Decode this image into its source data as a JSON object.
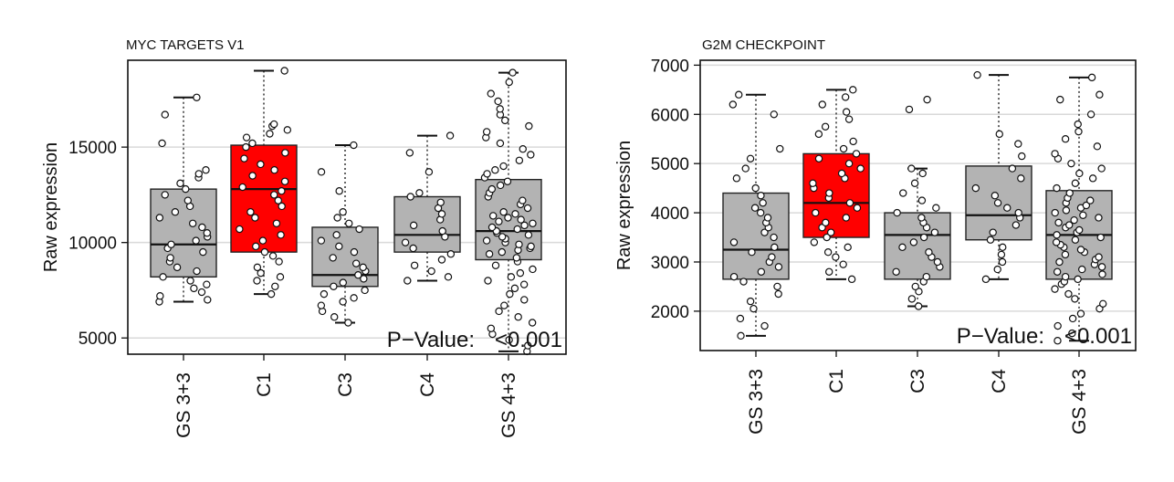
{
  "chart_data": [
    {
      "type": "boxplot",
      "title": "MYC TARGETS V1",
      "ylabel": "Raw expression",
      "xlabel": "",
      "categories": [
        "GS 3+3",
        "C1",
        "C3",
        "C4",
        "GS 4+3"
      ],
      "ylim": [
        4150,
        19550
      ],
      "yticks": [
        5000,
        10000,
        15000
      ],
      "grid": true,
      "highlight_category": "C1",
      "colors": {
        "default_box": "#b3b3b3",
        "highlight_box": "#ff0000",
        "point_fill": "#ffffff",
        "gridline": "#d9d9d9"
      },
      "annotation": {
        "label": "P−Value:",
        "value": "<0.001"
      },
      "boxes": [
        {
          "category": "GS 3+3",
          "whisker_low": 6900,
          "q1": 8200,
          "median": 9900,
          "q3": 12800,
          "whisker_high": 17600
        },
        {
          "category": "C1",
          "whisker_low": 7300,
          "q1": 9500,
          "median": 12800,
          "q3": 15100,
          "whisker_high": 19000
        },
        {
          "category": "C3",
          "whisker_low": 5800,
          "q1": 7700,
          "median": 8300,
          "q3": 10800,
          "whisker_high": 15100
        },
        {
          "category": "C4",
          "whisker_low": 8000,
          "q1": 9500,
          "median": 10400,
          "q3": 12400,
          "whisker_high": 15600
        },
        {
          "category": "GS 4+3",
          "whisker_low": 4300,
          "q1": 9100,
          "median": 10600,
          "q3": 13300,
          "whisker_high": 18900
        }
      ],
      "points": [
        {
          "category": "GS 3+3",
          "values": [
            6900,
            7000,
            7200,
            7400,
            7600,
            7800,
            8000,
            8200,
            8500,
            8700,
            9000,
            9200,
            9500,
            9700,
            9900,
            10100,
            10300,
            10500,
            10800,
            11000,
            11300,
            11600,
            11900,
            12200,
            12500,
            12800,
            13100,
            13400,
            13600,
            13800,
            15200,
            16700,
            17600
          ]
        },
        {
          "category": "C1",
          "values": [
            7300,
            7700,
            8000,
            8200,
            8400,
            8700,
            9000,
            9300,
            9500,
            9800,
            10100,
            10400,
            10700,
            11000,
            11300,
            11600,
            11900,
            12200,
            12500,
            12700,
            12900,
            13200,
            13500,
            13800,
            14100,
            14400,
            14700,
            15000,
            15200,
            15500,
            15700,
            15900,
            16100,
            16200,
            19000
          ]
        },
        {
          "category": "C3",
          "values": [
            5800,
            6100,
            6400,
            6700,
            6900,
            7100,
            7300,
            7500,
            7700,
            7900,
            8100,
            8300,
            8500,
            8700,
            8900,
            9200,
            9500,
            9800,
            10100,
            10400,
            10700,
            11000,
            11300,
            11600,
            12700,
            13700,
            15100
          ]
        },
        {
          "category": "C4",
          "values": [
            8000,
            8200,
            8500,
            8800,
            9100,
            9400,
            9700,
            10000,
            10300,
            10600,
            10900,
            11200,
            11500,
            11800,
            12100,
            12400,
            12600,
            13700,
            14700,
            15600
          ]
        },
        {
          "category": "GS 4+3",
          "values": [
            4300,
            4600,
            4900,
            5200,
            5500,
            5800,
            6100,
            6400,
            6700,
            7000,
            7300,
            7600,
            7800,
            8000,
            8200,
            8400,
            8600,
            8800,
            9000,
            9200,
            9400,
            9500,
            9600,
            9700,
            9800,
            9900,
            10000,
            10100,
            10200,
            10300,
            10400,
            10500,
            10600,
            10700,
            10800,
            10900,
            11000,
            11100,
            11200,
            11300,
            11400,
            11500,
            11600,
            11800,
            12000,
            12200,
            12400,
            12600,
            12800,
            13000,
            13200,
            13400,
            13600,
            13800,
            14000,
            14300,
            14600,
            14900,
            15200,
            15500,
            15800,
            16100,
            16400,
            16700,
            17000,
            17400,
            17800,
            18400,
            18900
          ]
        }
      ]
    },
    {
      "type": "boxplot",
      "title": "G2M CHECKPOINT",
      "ylabel": "Raw expression",
      "xlabel": "",
      "categories": [
        "GS 3+3",
        "C1",
        "C3",
        "C4",
        "GS 4+3"
      ],
      "ylim": [
        1200,
        7100
      ],
      "yticks": [
        2000,
        3000,
        4000,
        5000,
        6000,
        7000
      ],
      "grid": true,
      "highlight_category": "C1",
      "colors": {
        "default_box": "#b3b3b3",
        "highlight_box": "#ff0000",
        "point_fill": "#ffffff",
        "gridline": "#d9d9d9"
      },
      "annotation": {
        "label": "P−Value:",
        "value": "<0.001"
      },
      "boxes": [
        {
          "category": "GS 3+3",
          "whisker_low": 1500,
          "q1": 2650,
          "median": 3250,
          "q3": 4400,
          "whisker_high": 6400
        },
        {
          "category": "C1",
          "whisker_low": 2650,
          "q1": 3500,
          "median": 4200,
          "q3": 5200,
          "whisker_high": 6500
        },
        {
          "category": "C3",
          "whisker_low": 2100,
          "q1": 2650,
          "median": 3550,
          "q3": 4000,
          "whisker_high": 4900
        },
        {
          "category": "C4",
          "whisker_low": 2650,
          "q1": 3450,
          "median": 3950,
          "q3": 4950,
          "whisker_high": 6800
        },
        {
          "category": "GS 4+3",
          "whisker_low": 1400,
          "q1": 2650,
          "median": 3550,
          "q3": 4450,
          "whisker_high": 6750
        }
      ],
      "points": [
        {
          "category": "GS 3+3",
          "values": [
            1500,
            1700,
            1850,
            2050,
            2200,
            2350,
            2500,
            2600,
            2700,
            2800,
            2900,
            3000,
            3100,
            3200,
            3300,
            3400,
            3500,
            3600,
            3700,
            3800,
            3900,
            4000,
            4100,
            4200,
            4350,
            4500,
            4700,
            4900,
            5100,
            5300,
            6000,
            6200,
            6400
          ]
        },
        {
          "category": "C1",
          "values": [
            2650,
            2800,
            2950,
            3100,
            3200,
            3300,
            3400,
            3500,
            3600,
            3700,
            3800,
            3900,
            4000,
            4100,
            4200,
            4300,
            4400,
            4500,
            4600,
            4700,
            4800,
            4900,
            5000,
            5100,
            5200,
            5300,
            5450,
            5600,
            5750,
            5900,
            6050,
            6200,
            6350,
            6500
          ]
        },
        {
          "category": "C3",
          "values": [
            2100,
            2250,
            2400,
            2500,
            2600,
            2700,
            2800,
            2900,
            3000,
            3100,
            3200,
            3300,
            3400,
            3500,
            3600,
            3700,
            3800,
            3900,
            4000,
            4100,
            4250,
            4400,
            4600,
            4800,
            4900,
            6100,
            6300
          ]
        },
        {
          "category": "C4",
          "values": [
            2650,
            2850,
            3000,
            3150,
            3300,
            3450,
            3600,
            3750,
            3900,
            4000,
            4100,
            4200,
            4350,
            4500,
            4700,
            4900,
            5150,
            5400,
            5600,
            6800
          ]
        },
        {
          "category": "GS 4+3",
          "values": [
            1400,
            1550,
            1700,
            1850,
            1950,
            2050,
            2150,
            2250,
            2350,
            2450,
            2550,
            2600,
            2650,
            2700,
            2750,
            2800,
            2850,
            2900,
            2950,
            3000,
            3050,
            3100,
            3150,
            3200,
            3250,
            3300,
            3350,
            3400,
            3450,
            3500,
            3550,
            3600,
            3650,
            3700,
            3750,
            3800,
            3850,
            3900,
            3950,
            4000,
            4050,
            4100,
            4150,
            4200,
            4250,
            4300,
            4400,
            4500,
            4600,
            4700,
            4800,
            4900,
            5000,
            5100,
            5200,
            5350,
            5500,
            5650,
            5800,
            6000,
            6300,
            6400,
            6750
          ]
        }
      ]
    }
  ]
}
